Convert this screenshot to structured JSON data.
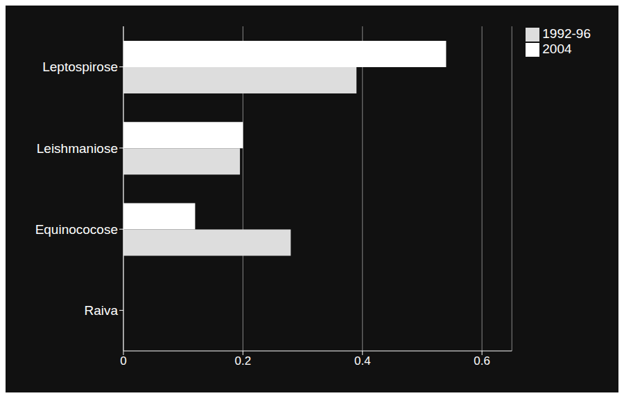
{
  "chart_data": {
    "type": "bar",
    "orientation": "horizontal",
    "categories": [
      "Leptospirose",
      "Leishmaniose",
      "Equinococose",
      "Raiva"
    ],
    "series": [
      {
        "name": "2004",
        "color": "#ffffff",
        "values": [
          0.54,
          0.2,
          0.12,
          0.0
        ]
      },
      {
        "name": "1992-96",
        "color": "#dddddd",
        "values": [
          0.39,
          0.195,
          0.28,
          0.0
        ]
      }
    ],
    "xlim": [
      0,
      0.65
    ],
    "xticks": [
      0,
      0.2,
      0.4,
      0.6
    ],
    "grid": true,
    "legend": "upper right"
  }
}
